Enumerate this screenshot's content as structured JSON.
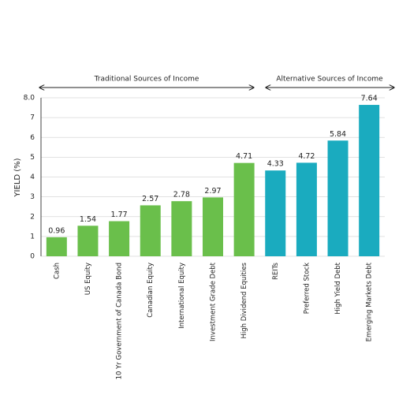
{
  "chart_data": {
    "type": "bar",
    "y_label": "YIELD (%)",
    "annotations": [
      "Traditional Sources of Income",
      "Alternative Sources of Income"
    ],
    "categories": [
      "Cash",
      "US Equity",
      "10 Yr Government of Canada Bond",
      "Canadian Equity",
      "International Equity",
      "Investment Grade Debt",
      "High Dividend Equities",
      "REITs",
      "Preferred Stock",
      "High Yield Debt",
      "Emerging Markets Debt"
    ],
    "values": [
      0.96,
      1.54,
      1.77,
      2.57,
      2.78,
      2.97,
      4.71,
      4.33,
      4.72,
      5.84,
      7.64
    ],
    "colors": [
      "#6abf4b",
      "#6abf4b",
      "#6abf4b",
      "#6abf4b",
      "#6abf4b",
      "#6abf4b",
      "#6abf4b",
      "#1aabbf",
      "#1aabbf",
      "#1aabbf",
      "#1aabbf"
    ],
    "ylim": [
      0,
      8
    ],
    "yticks": [
      0,
      1,
      2,
      3,
      4,
      5,
      6,
      7,
      {
        "value": 8,
        "label": "8.0"
      }
    ],
    "grid": true
  }
}
